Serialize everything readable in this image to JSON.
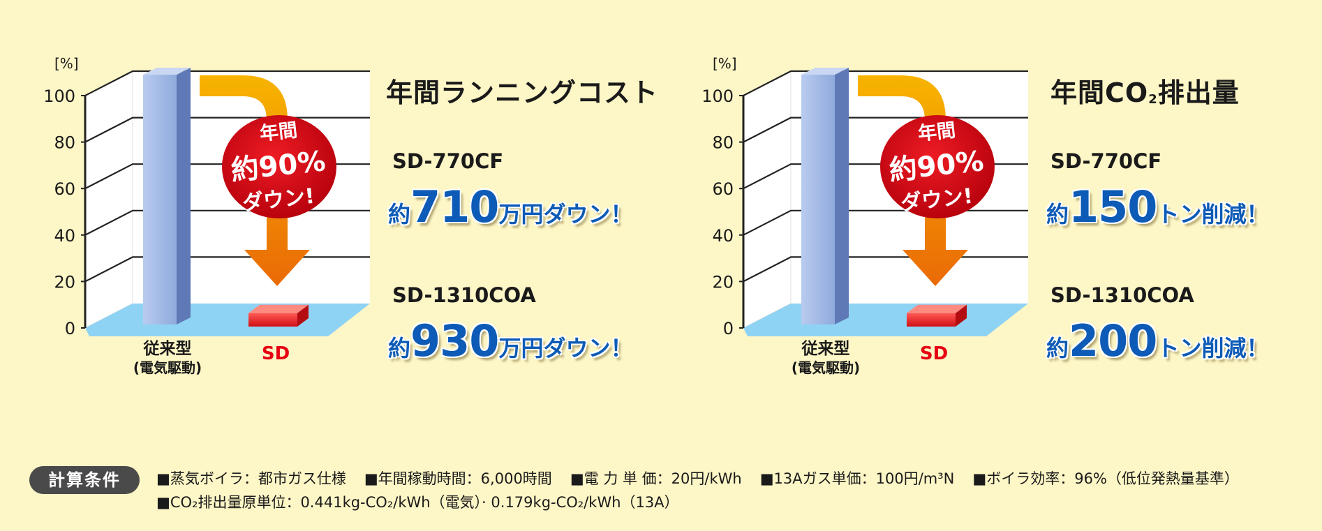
{
  "colors": {
    "background": "#fdf6c6",
    "conventional_bar": "#8faadc",
    "sd_bar": "#e8232a",
    "floor": "#8fd3f4",
    "arrow": "#f5a000",
    "badge_circle": "#d7000f",
    "result_text": "#0d5bb6",
    "sd_label": "#e60012"
  },
  "charts": [
    {
      "id": "running-cost",
      "title": "年間ランニングコスト",
      "title_sub": "",
      "badge": [
        "年間",
        "約90%",
        "ダウン!"
      ],
      "results": [
        {
          "model": "SD-770CF",
          "prefix": "約",
          "number": "710",
          "suffix": "万円ダウン！"
        },
        {
          "model": "SD-1310COA",
          "prefix": "約",
          "number": "930",
          "suffix": "万円ダウン！"
        }
      ]
    },
    {
      "id": "co2-emission",
      "title": "年間CO",
      "title_sub": "2",
      "title_tail": "排出量",
      "badge": [
        "年間",
        "約90%",
        "ダウン!"
      ],
      "results": [
        {
          "model": "SD-770CF",
          "prefix": "約",
          "number": "150",
          "suffix": "トン削減！"
        },
        {
          "model": "SD-1310COA",
          "prefix": "約",
          "number": "200",
          "suffix": "トン削減！"
        }
      ]
    }
  ],
  "chart_data": [
    {
      "type": "bar",
      "title": "年間ランニングコスト",
      "ylabel": "[%]",
      "ylim": [
        0,
        100
      ],
      "yticks": [
        0,
        20,
        40,
        60,
        80,
        100
      ],
      "categories": [
        "従来型\n(電気駆動)",
        "SD"
      ],
      "values": [
        100,
        10
      ]
    },
    {
      "type": "bar",
      "title": "年間CO2排出量",
      "ylabel": "[%]",
      "ylim": [
        0,
        100
      ],
      "yticks": [
        0,
        20,
        40,
        60,
        80,
        100
      ],
      "categories": [
        "従来型\n(電気駆動)",
        "SD"
      ],
      "values": [
        100,
        10
      ]
    }
  ],
  "conditions": {
    "label": "計算条件",
    "line1": [
      "■蒸気ボイラ：都市ガス仕様",
      "■年間稼動時間：6,000時間",
      "■電 力 単 価：20円/kWh",
      "■13Aガス単価：100円/m³N",
      "■ボイラ効率：96%（低位発熱量基準）"
    ],
    "line2": "■CO₂排出量原単位：0.441kg-CO₂/kWh（電気）· 0.179kg-CO₂/kWh（13A）"
  }
}
